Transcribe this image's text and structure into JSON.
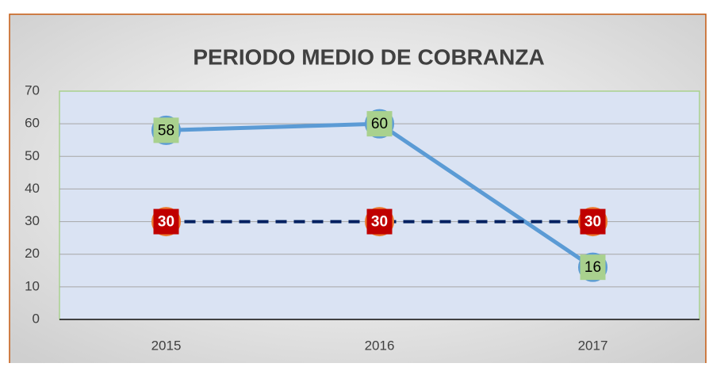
{
  "chart_data": {
    "type": "line",
    "title": "PERIODO MEDIO DE COBRANZA",
    "categories": [
      "2015",
      "2016",
      "2017"
    ],
    "series": [
      {
        "color": "#5b9bd5",
        "values": [
          58,
          60,
          16
        ]
      },
      {
        "color": "#002060",
        "values": [
          30,
          30,
          30
        ]
      }
    ],
    "ylim": [
      0,
      70
    ],
    "yticks": [
      0,
      10,
      20,
      30,
      40,
      50,
      60,
      70
    ],
    "grid": true
  }
}
